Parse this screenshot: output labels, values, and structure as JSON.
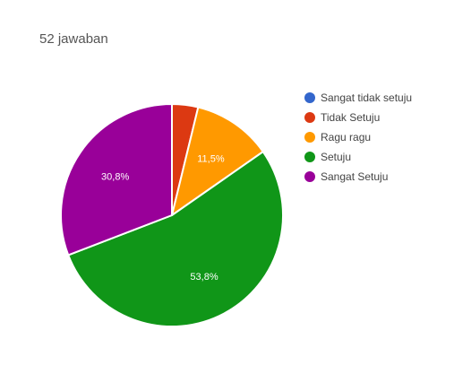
{
  "header": {
    "response_count": "52 jawaban"
  },
  "chart_data": {
    "type": "pie",
    "title": "",
    "slices": [
      {
        "name": "Sangat tidak setuju",
        "value": 0,
        "label": "",
        "color": "#3366cc"
      },
      {
        "name": "Tidak Setuju",
        "value": 3.8,
        "label": "",
        "color": "#dc3912"
      },
      {
        "name": "Ragu ragu",
        "value": 11.5,
        "label": "11,5%",
        "color": "#ff9900"
      },
      {
        "name": "Setuju",
        "value": 53.8,
        "label": "53,8%",
        "color": "#109618"
      },
      {
        "name": "Sangat Setuju",
        "value": 30.8,
        "label": "30,8%",
        "color": "#990099"
      }
    ],
    "start_angle_deg": 90,
    "direction": "clockwise",
    "legend_position": "right"
  }
}
